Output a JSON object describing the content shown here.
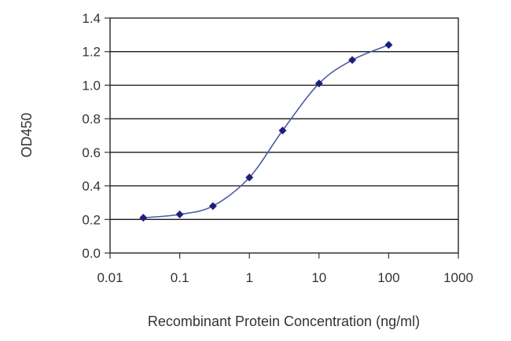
{
  "chart_data": {
    "type": "scatter",
    "title": "",
    "xlabel": "Recombinant Protein Concentration (ng/ml)",
    "ylabel": "OD450",
    "x_scale": "log",
    "xlim": [
      0.01,
      1000
    ],
    "ylim": [
      0.0,
      1.4
    ],
    "x_tick_labels": [
      "0.01",
      "0.1",
      "1",
      "10",
      "100",
      "1000"
    ],
    "y_tick_labels": [
      "0.0",
      "0.2",
      "0.4",
      "0.6",
      "0.8",
      "1.0",
      "1.2",
      "1.4"
    ],
    "grid": "horizontal",
    "legend": "none",
    "colors": {
      "points": "#1f1f7a",
      "curve": "#4a5aa8",
      "grid": "#000000",
      "axis": "#333333"
    },
    "series": [
      {
        "x": [
          0.03,
          0.1,
          0.3,
          1,
          3,
          10,
          30,
          100
        ],
        "y": [
          0.21,
          0.23,
          0.28,
          0.45,
          0.73,
          1.01,
          1.15,
          1.24
        ]
      }
    ]
  }
}
